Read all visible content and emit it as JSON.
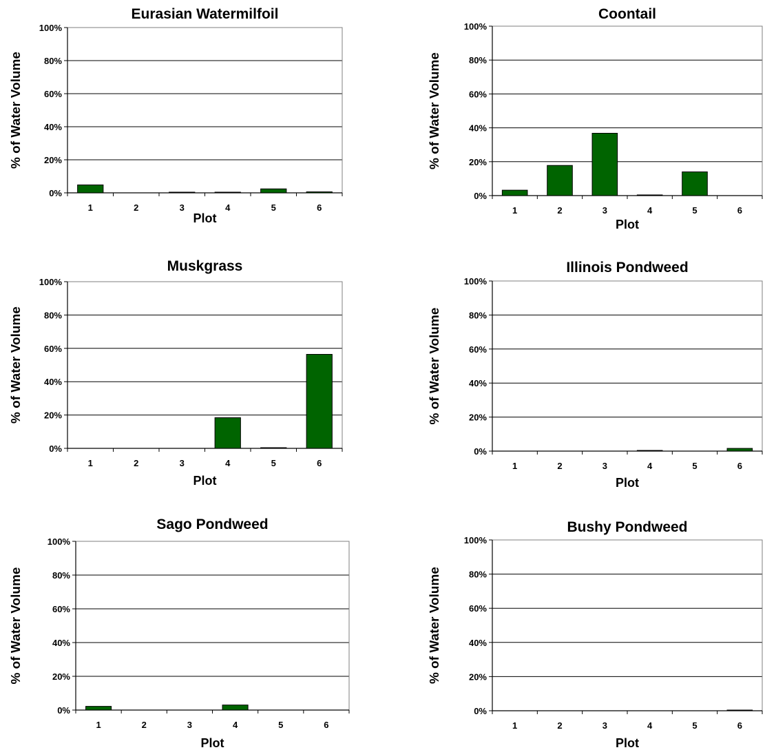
{
  "style": {
    "bar_color": "#006400",
    "bar_stroke": "#000000",
    "grid_color": "#000000"
  },
  "chart_data": [
    {
      "type": "bar",
      "title": "Eurasian Watermilfoil",
      "xlabel": "Plot",
      "ylabel": "% of Water Volume",
      "categories": [
        "1",
        "2",
        "3",
        "4",
        "5",
        "6"
      ],
      "values": [
        4.8,
        0,
        0.3,
        0.2,
        2.4,
        0.6
      ],
      "ylim": [
        0,
        100
      ],
      "yticks": [
        "0%",
        "20%",
        "40%",
        "60%",
        "80%",
        "100%"
      ],
      "grid": true,
      "legend": "none"
    },
    {
      "type": "bar",
      "title": "Coontail",
      "xlabel": "Plot",
      "ylabel": "% of Water Volume",
      "categories": [
        "1",
        "2",
        "3",
        "4",
        "5",
        "6"
      ],
      "values": [
        3.2,
        17.8,
        36.8,
        0.2,
        14,
        0
      ],
      "ylim": [
        0,
        100
      ],
      "yticks": [
        "0%",
        "20%",
        "40%",
        "60%",
        "80%",
        "100%"
      ],
      "grid": true,
      "legend": "none"
    },
    {
      "type": "bar",
      "title": "Muskgrass",
      "xlabel": "Plot",
      "ylabel": "% of Water Volume",
      "categories": [
        "1",
        "2",
        "3",
        "4",
        "5",
        "6"
      ],
      "values": [
        0,
        0,
        0,
        18.4,
        0.2,
        56.4
      ],
      "ylim": [
        0,
        100
      ],
      "yticks": [
        "0%",
        "20%",
        "40%",
        "60%",
        "80%",
        "100%"
      ],
      "grid": true,
      "legend": "none"
    },
    {
      "type": "bar",
      "title": "Illinois Pondweed",
      "xlabel": "Plot",
      "ylabel": "% of Water Volume",
      "categories": [
        "1",
        "2",
        "3",
        "4",
        "5",
        "6"
      ],
      "values": [
        0,
        0,
        0,
        0.3,
        0,
        1.6
      ],
      "ylim": [
        0,
        100
      ],
      "yticks": [
        "0%",
        "20%",
        "40%",
        "60%",
        "80%",
        "100%"
      ],
      "grid": true,
      "legend": "none"
    },
    {
      "type": "bar",
      "title": "Sago Pondweed",
      "xlabel": "Plot",
      "ylabel": "% of Water Volume",
      "categories": [
        "1",
        "2",
        "3",
        "4",
        "5",
        "6"
      ],
      "values": [
        2.2,
        0,
        0,
        3,
        0,
        0
      ],
      "ylim": [
        0,
        100
      ],
      "yticks": [
        "0%",
        "20%",
        "40%",
        "60%",
        "80%",
        "100%"
      ],
      "grid": true,
      "legend": "none"
    },
    {
      "type": "bar",
      "title": "Bushy Pondweed",
      "xlabel": "Plot",
      "ylabel": "% of Water Volume",
      "categories": [
        "1",
        "2",
        "3",
        "4",
        "5",
        "6"
      ],
      "values": [
        0,
        0,
        0,
        0,
        0,
        0.3
      ],
      "ylim": [
        0,
        100
      ],
      "yticks": [
        "0%",
        "20%",
        "40%",
        "60%",
        "80%",
        "100%"
      ],
      "grid": true,
      "legend": "none"
    }
  ]
}
